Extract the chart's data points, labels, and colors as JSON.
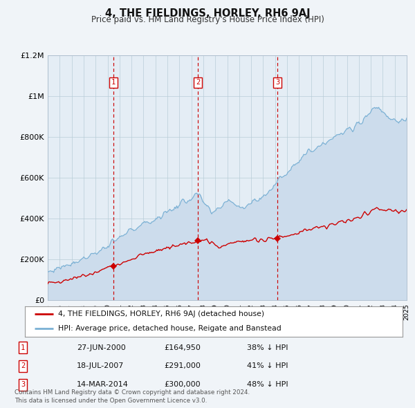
{
  "title": "4, THE FIELDINGS, HORLEY, RH6 9AJ",
  "subtitle": "Price paid vs. HM Land Registry's House Price Index (HPI)",
  "background_color": "#f0f4f8",
  "plot_bg_color": "#e4edf5",
  "x_start_year": 1995,
  "x_end_year": 2025,
  "y_min": 0,
  "y_max": 1200000,
  "y_ticks": [
    0,
    200000,
    400000,
    600000,
    800000,
    1000000,
    1200000
  ],
  "y_tick_labels": [
    "£0",
    "£200K",
    "£400K",
    "£600K",
    "£800K",
    "£1M",
    "£1.2M"
  ],
  "red_line_label": "4, THE FIELDINGS, HORLEY, RH6 9AJ (detached house)",
  "blue_line_label": "HPI: Average price, detached house, Reigate and Banstead",
  "sale_points": [
    {
      "num": 1,
      "year": 2000.49,
      "date": "27-JUN-2000",
      "price": 164950,
      "price_str": "£164,950",
      "hpi_pct": "38% ↓ HPI"
    },
    {
      "num": 2,
      "year": 2007.54,
      "date": "18-JUL-2007",
      "price": 291000,
      "price_str": "£291,000",
      "hpi_pct": "41% ↓ HPI"
    },
    {
      "num": 3,
      "year": 2014.2,
      "date": "14-MAR-2014",
      "price": 300000,
      "price_str": "£300,000",
      "hpi_pct": "48% ↓ HPI"
    }
  ],
  "footer_line1": "Contains HM Land Registry data © Crown copyright and database right 2024.",
  "footer_line2": "This data is licensed under the Open Government Licence v3.0.",
  "red_color": "#cc0000",
  "blue_color": "#7ab0d4",
  "blue_fill_color": "#ccdcec",
  "vline_color": "#cc0000",
  "label_box_color": "#cc0000",
  "grid_color": "#b8ccd8"
}
